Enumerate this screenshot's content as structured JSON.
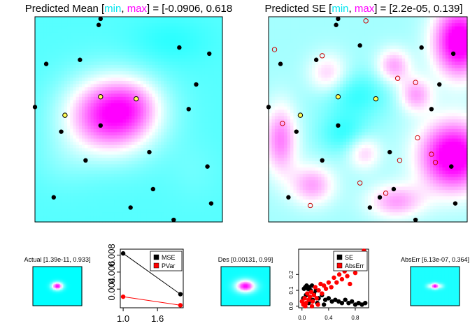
{
  "chart_data": [
    {
      "id": "predicted-mean",
      "type": "heatmap",
      "title_parts": [
        {
          "text": "Predicted Mean [",
          "color": "#000000"
        },
        {
          "text": "min",
          "color": "#00e5ee"
        },
        {
          "text": ", ",
          "color": "#000000"
        },
        {
          "text": "max",
          "color": "#ff00ff"
        },
        {
          "text": "] = [-0.0906, 0.618",
          "color": "#000000"
        }
      ],
      "range": [
        -0.0906,
        0.618
      ],
      "low_color": "#00ffff",
      "high_color": "#ff00ff",
      "xlim": [
        0,
        1
      ],
      "ylim": [
        0,
        1
      ],
      "field": {
        "background": 0.03,
        "bumps": [
          {
            "x": 0.41,
            "y": 0.52,
            "a": 0.58,
            "sx": 0.17,
            "sy": 0.13
          },
          {
            "x": 0.53,
            "y": 0.58,
            "a": 0.1,
            "sx": 0.1,
            "sy": 0.08
          },
          {
            "x": 0.15,
            "y": 0.3,
            "a": 0.05,
            "sx": 0.12,
            "sy": 0.1
          },
          {
            "x": 0.72,
            "y": 0.88,
            "a": -0.06,
            "sx": 0.15,
            "sy": 0.08
          },
          {
            "x": 0.85,
            "y": 0.25,
            "a": 0.03,
            "sx": 0.1,
            "sy": 0.1
          }
        ]
      },
      "design_points": [
        [
          0.34,
          0.96
        ],
        [
          0.24,
          0.79
        ],
        [
          0.77,
          0.85
        ],
        [
          0.93,
          0.82
        ],
        [
          0.06,
          0.77
        ],
        [
          0.86,
          0.67
        ],
        [
          0.35,
          0.61
        ],
        [
          0.54,
          0.6
        ],
        [
          0.16,
          0.52
        ],
        [
          0.0,
          0.56
        ],
        [
          0.82,
          0.55
        ],
        [
          0.35,
          0.47
        ],
        [
          0.14,
          0.44
        ],
        [
          0.61,
          0.34
        ],
        [
          0.27,
          0.3
        ],
        [
          0.92,
          0.27
        ],
        [
          0.63,
          0.16
        ],
        [
          0.1,
          0.12
        ],
        [
          0.51,
          0.07
        ],
        [
          0.94,
          0.09
        ],
        [
          0.35,
          0.99
        ],
        [
          0.74,
          0.01
        ]
      ],
      "new_points": [
        [
          0.35,
          0.61
        ],
        [
          0.54,
          0.6
        ],
        [
          0.16,
          0.52
        ]
      ]
    },
    {
      "id": "predicted-se",
      "type": "heatmap",
      "title_parts": [
        {
          "text": "Predicted SE [",
          "color": "#000000"
        },
        {
          "text": "min",
          "color": "#00e5ee"
        },
        {
          "text": ", ",
          "color": "#000000"
        },
        {
          "text": "max",
          "color": "#ff00ff"
        },
        {
          "text": "] = [2.2e-05, 0.139]",
          "color": "#000000"
        }
      ],
      "range": [
        2.2e-05,
        0.139
      ],
      "low_color": "#00ffff",
      "high_color": "#ff00ff",
      "xlim": [
        0,
        1
      ],
      "ylim": [
        0,
        1
      ],
      "field": {
        "background": 0.045,
        "bumps": [
          {
            "x": 0.96,
            "y": 0.88,
            "a": 0.11,
            "sx": 0.09,
            "sy": 0.12
          },
          {
            "x": 0.93,
            "y": 0.32,
            "a": 0.11,
            "sx": 0.12,
            "sy": 0.12
          },
          {
            "x": 0.64,
            "y": 0.1,
            "a": 0.05,
            "sx": 0.1,
            "sy": 0.06
          },
          {
            "x": 0.06,
            "y": 0.4,
            "a": 0.06,
            "sx": 0.06,
            "sy": 0.12
          },
          {
            "x": 0.22,
            "y": 0.18,
            "a": 0.05,
            "sx": 0.08,
            "sy": 0.07
          },
          {
            "x": 0.3,
            "y": 0.72,
            "a": 0.04,
            "sx": 0.07,
            "sy": 0.07
          },
          {
            "x": 0.63,
            "y": 0.76,
            "a": 0.05,
            "sx": 0.06,
            "sy": 0.06
          },
          {
            "x": 0.48,
            "y": 0.34,
            "a": 0.04,
            "sx": 0.06,
            "sy": 0.06
          },
          {
            "x": 0.74,
            "y": 0.62,
            "a": 0.05,
            "sx": 0.06,
            "sy": 0.06
          },
          {
            "x": 0.38,
            "y": 0.43,
            "a": -0.03,
            "sx": 0.09,
            "sy": 0.07
          },
          {
            "x": 0.44,
            "y": 0.62,
            "a": -0.03,
            "sx": 0.12,
            "sy": 0.08
          }
        ]
      },
      "design_points": [
        [
          0.34,
          0.96
        ],
        [
          0.24,
          0.79
        ],
        [
          0.77,
          0.85
        ],
        [
          0.93,
          0.82
        ],
        [
          0.06,
          0.77
        ],
        [
          0.86,
          0.67
        ],
        [
          0.35,
          0.61
        ],
        [
          0.54,
          0.6
        ],
        [
          0.16,
          0.52
        ],
        [
          0.0,
          0.56
        ],
        [
          0.82,
          0.55
        ],
        [
          0.35,
          0.47
        ],
        [
          0.14,
          0.44
        ],
        [
          0.61,
          0.34
        ],
        [
          0.27,
          0.3
        ],
        [
          0.92,
          0.27
        ],
        [
          0.63,
          0.16
        ],
        [
          0.1,
          0.12
        ],
        [
          0.51,
          0.07
        ],
        [
          0.94,
          0.09
        ],
        [
          0.35,
          0.99
        ],
        [
          0.74,
          0.01
        ],
        [
          0.56,
          0.12
        ],
        [
          0.46,
          0.86
        ]
      ],
      "new_points": [
        [
          0.35,
          0.61
        ],
        [
          0.54,
          0.6
        ],
        [
          0.16,
          0.52
        ]
      ],
      "candidate_points": [
        [
          0.49,
          0.98
        ],
        [
          0.03,
          0.84
        ],
        [
          0.27,
          0.81
        ],
        [
          0.65,
          0.7
        ],
        [
          0.74,
          0.68
        ],
        [
          0.07,
          0.48
        ],
        [
          0.75,
          0.41
        ],
        [
          0.66,
          0.3
        ],
        [
          0.82,
          0.33
        ],
        [
          0.84,
          0.29
        ],
        [
          0.46,
          0.19
        ],
        [
          0.59,
          0.14
        ],
        [
          0.21,
          0.08
        ]
      ]
    },
    {
      "id": "actual-thumb",
      "type": "heatmap",
      "title": "Actual [1.39e-11, 0.933]",
      "range": [
        1.39e-11,
        0.933
      ],
      "low_color": "#00ffff",
      "high_color": "#ff00ff",
      "field": {
        "background": 0.0,
        "bumps": [
          {
            "x": 0.5,
            "y": 0.5,
            "a": 0.933,
            "sx": 0.08,
            "sy": 0.07
          }
        ]
      }
    },
    {
      "id": "mse-pvar",
      "type": "line",
      "x": [
        1,
        2
      ],
      "xlim": [
        0.95,
        2.05
      ],
      "ylim": [
        0.0018,
        0.0087
      ],
      "xticks": [
        1.0,
        1.6
      ],
      "yticks": [
        0.004,
        0.006,
        0.008
      ],
      "ytick_labels": [
        "0.004",
        "0.006",
        "0.008"
      ],
      "xtick_labels": [
        "1.0",
        "1.6"
      ],
      "series": [
        {
          "name": "MSE",
          "color": "#000000",
          "values": [
            0.0082,
            0.0034
          ]
        },
        {
          "name": "PVar",
          "color": "#ff0000",
          "values": [
            0.0031,
            0.0021
          ]
        }
      ],
      "legend": "top-right"
    },
    {
      "id": "des-thumb",
      "type": "heatmap",
      "title": "Des [0.00131, 0.99]",
      "range": [
        0.00131,
        0.99
      ],
      "low_color": "#00ffff",
      "high_color": "#ff00ff",
      "field": {
        "background": 0.03,
        "bumps": [
          {
            "x": 0.5,
            "y": 0.5,
            "a": 0.95,
            "sx": 0.14,
            "sy": 0.11
          }
        ]
      }
    },
    {
      "id": "se-abserr",
      "type": "scatter",
      "xlim": [
        -0.05,
        1.0
      ],
      "ylim": [
        -0.01,
        0.36
      ],
      "xticks": [
        0.0,
        0.4,
        0.8
      ],
      "xtick_labels": [
        "0.0",
        "0.4",
        "0.8"
      ],
      "yticks": [
        0.0,
        0.1,
        0.2
      ],
      "ytick_labels": [
        "0.0",
        "0.1",
        "0.2"
      ],
      "series": [
        {
          "name": "SE",
          "color": "#000000",
          "points": [
            [
              0.03,
              0.11
            ],
            [
              0.05,
              0.12
            ],
            [
              0.07,
              0.13
            ],
            [
              0.09,
              0.11
            ],
            [
              0.11,
              0.12
            ],
            [
              0.13,
              0.1
            ],
            [
              0.15,
              0.13
            ],
            [
              0.18,
              0.08
            ],
            [
              0.21,
              0.1
            ],
            [
              0.25,
              0.05
            ],
            [
              0.3,
              0.07
            ],
            [
              0.35,
              0.04
            ],
            [
              0.4,
              0.05
            ],
            [
              0.45,
              0.03
            ],
            [
              0.5,
              0.04
            ],
            [
              0.55,
              0.03
            ],
            [
              0.6,
              0.02
            ],
            [
              0.65,
              0.04
            ],
            [
              0.7,
              0.02
            ],
            [
              0.75,
              0.03
            ],
            [
              0.8,
              0.01
            ],
            [
              0.85,
              0.02
            ],
            [
              0.9,
              0.01
            ],
            [
              0.95,
              0.02
            ],
            [
              0.02,
              0.05
            ],
            [
              0.06,
              0.07
            ],
            [
              0.1,
              0.02
            ],
            [
              0.16,
              0.04
            ],
            [
              0.23,
              0.02
            ],
            [
              0.33,
              0.01
            ]
          ]
        },
        {
          "name": "AbsErr",
          "color": "#ff0000",
          "points": [
            [
              0.0,
              0.03
            ],
            [
              0.02,
              0.01
            ],
            [
              0.04,
              0.05
            ],
            [
              0.06,
              0.02
            ],
            [
              0.08,
              0.08
            ],
            [
              0.1,
              0.04
            ],
            [
              0.12,
              0.06
            ],
            [
              0.14,
              0.09
            ],
            [
              0.16,
              0.03
            ],
            [
              0.18,
              0.07
            ],
            [
              0.2,
              0.12
            ],
            [
              0.22,
              0.05
            ],
            [
              0.25,
              0.1
            ],
            [
              0.28,
              0.14
            ],
            [
              0.3,
              0.08
            ],
            [
              0.33,
              0.13
            ],
            [
              0.36,
              0.11
            ],
            [
              0.4,
              0.15
            ],
            [
              0.44,
              0.12
            ],
            [
              0.48,
              0.18
            ],
            [
              0.52,
              0.15
            ],
            [
              0.56,
              0.2
            ],
            [
              0.6,
              0.17
            ],
            [
              0.64,
              0.22
            ],
            [
              0.68,
              0.19
            ],
            [
              0.72,
              0.14
            ],
            [
              0.76,
              0.24
            ],
            [
              0.8,
              0.21
            ],
            [
              0.84,
              0.27
            ],
            [
              0.88,
              0.26
            ],
            [
              0.91,
              0.32
            ],
            [
              0.93,
              0.35
            ],
            [
              0.05,
              0.0
            ],
            [
              0.15,
              0.0
            ],
            [
              0.24,
              0.01
            ]
          ]
        }
      ],
      "legend": "top-right"
    },
    {
      "id": "abserr-thumb",
      "type": "heatmap",
      "title": "AbsErr [6.13e-07, 0.364]",
      "range": [
        6.13e-07,
        0.364
      ],
      "low_color": "#00ffff",
      "high_color": "#ff00ff",
      "field": {
        "background": 0.02,
        "bumps": [
          {
            "x": 0.5,
            "y": 0.5,
            "a": 0.35,
            "sx": 0.05,
            "sy": 0.05
          },
          {
            "x": 0.38,
            "y": 0.5,
            "a": 0.1,
            "sx": 0.05,
            "sy": 0.05
          },
          {
            "x": 0.62,
            "y": 0.5,
            "a": 0.1,
            "sx": 0.05,
            "sy": 0.05
          }
        ]
      }
    }
  ]
}
